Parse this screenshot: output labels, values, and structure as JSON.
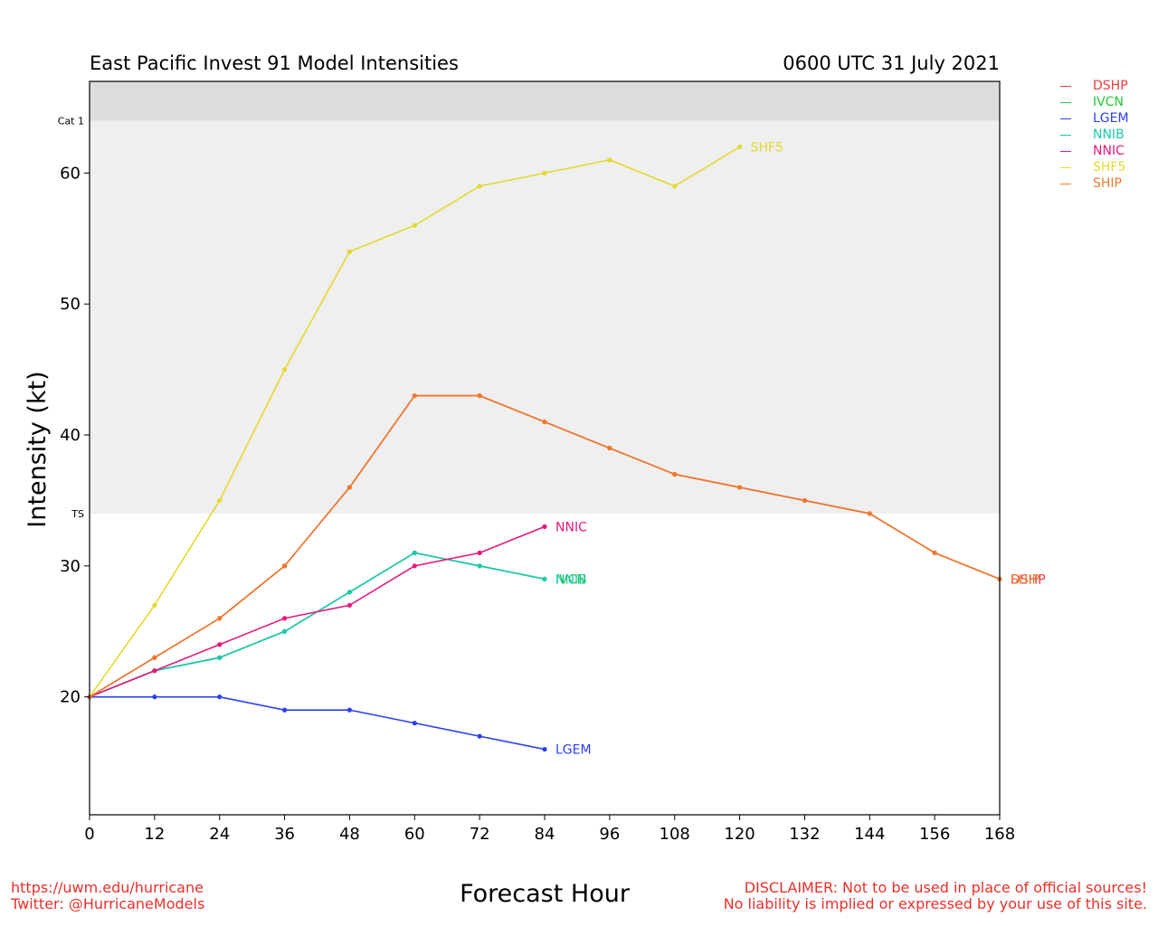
{
  "header": {
    "title": "East Pacific Invest 91 Model Intensities",
    "date": "0600 UTC 31 July 2021"
  },
  "footer": {
    "url": "https://uwm.edu/hurricane",
    "twitter": "Twitter: @HurricaneModels",
    "disclaimer_line1": "DISCLAIMER: Not to be used in place of official sources!",
    "disclaimer_line2": "No liability is implied or expressed by your use of this site."
  },
  "chart_data": {
    "type": "line",
    "xlabel": "Forecast Hour",
    "ylabel": "Intensity (kt)",
    "xlim": [
      0,
      168
    ],
    "ylim": [
      11,
      67
    ],
    "xticks": [
      0,
      12,
      24,
      36,
      48,
      60,
      72,
      84,
      96,
      108,
      120,
      132,
      144,
      156,
      168
    ],
    "yticks": [
      20,
      30,
      40,
      50,
      60
    ],
    "grid": false,
    "legend_position": "outside-top-right",
    "bands": [
      {
        "label": "TS",
        "from": 34,
        "to": 64,
        "color": "#efefef"
      },
      {
        "label": "Cat 1",
        "from": 64,
        "to": 67,
        "color": "#dcdcdc"
      }
    ],
    "series": [
      {
        "name": "DSHP",
        "color": "#f03a3a",
        "x": [
          0,
          12,
          24,
          36,
          48,
          60,
          72,
          84,
          96,
          108,
          120,
          132,
          144,
          156,
          168
        ],
        "values": [
          20,
          23,
          26,
          30,
          36,
          43,
          43,
          41,
          39,
          37,
          36,
          35,
          34,
          31,
          29
        ]
      },
      {
        "name": "IVCN",
        "color": "#22c933",
        "x": [
          0,
          12,
          24,
          36,
          48,
          60,
          72,
          84
        ],
        "values": [
          20,
          22,
          23,
          25,
          28,
          31,
          30,
          29
        ]
      },
      {
        "name": "LGEM",
        "color": "#2b3ff0",
        "x": [
          0,
          12,
          24,
          36,
          48,
          60,
          72,
          84
        ],
        "values": [
          20,
          20,
          20,
          19,
          19,
          18,
          17,
          16
        ]
      },
      {
        "name": "NNIB",
        "color": "#1dc7b0",
        "x": [
          0,
          12,
          24,
          36,
          48,
          60,
          72,
          84
        ],
        "values": [
          20,
          22,
          23,
          25,
          28,
          31,
          30,
          29
        ]
      },
      {
        "name": "NNIC",
        "color": "#e6197d",
        "x": [
          0,
          12,
          24,
          36,
          48,
          60,
          72,
          84
        ],
        "values": [
          20,
          22,
          24,
          26,
          27,
          30,
          31,
          33
        ]
      },
      {
        "name": "SHF5",
        "color": "#e3d92f",
        "x": [
          0,
          12,
          24,
          36,
          48,
          60,
          72,
          84,
          96,
          108,
          120
        ],
        "values": [
          20,
          27,
          35,
          45,
          54,
          56,
          59,
          60,
          61,
          59,
          62
        ]
      },
      {
        "name": "SHIP",
        "color": "#ee7a2c",
        "x": [
          0,
          12,
          24,
          36,
          48,
          60,
          72,
          84,
          96,
          108,
          120,
          132,
          144,
          156,
          168
        ],
        "values": [
          20,
          23,
          26,
          30,
          36,
          43,
          43,
          41,
          39,
          37,
          36,
          35,
          34,
          31,
          29
        ]
      }
    ]
  }
}
